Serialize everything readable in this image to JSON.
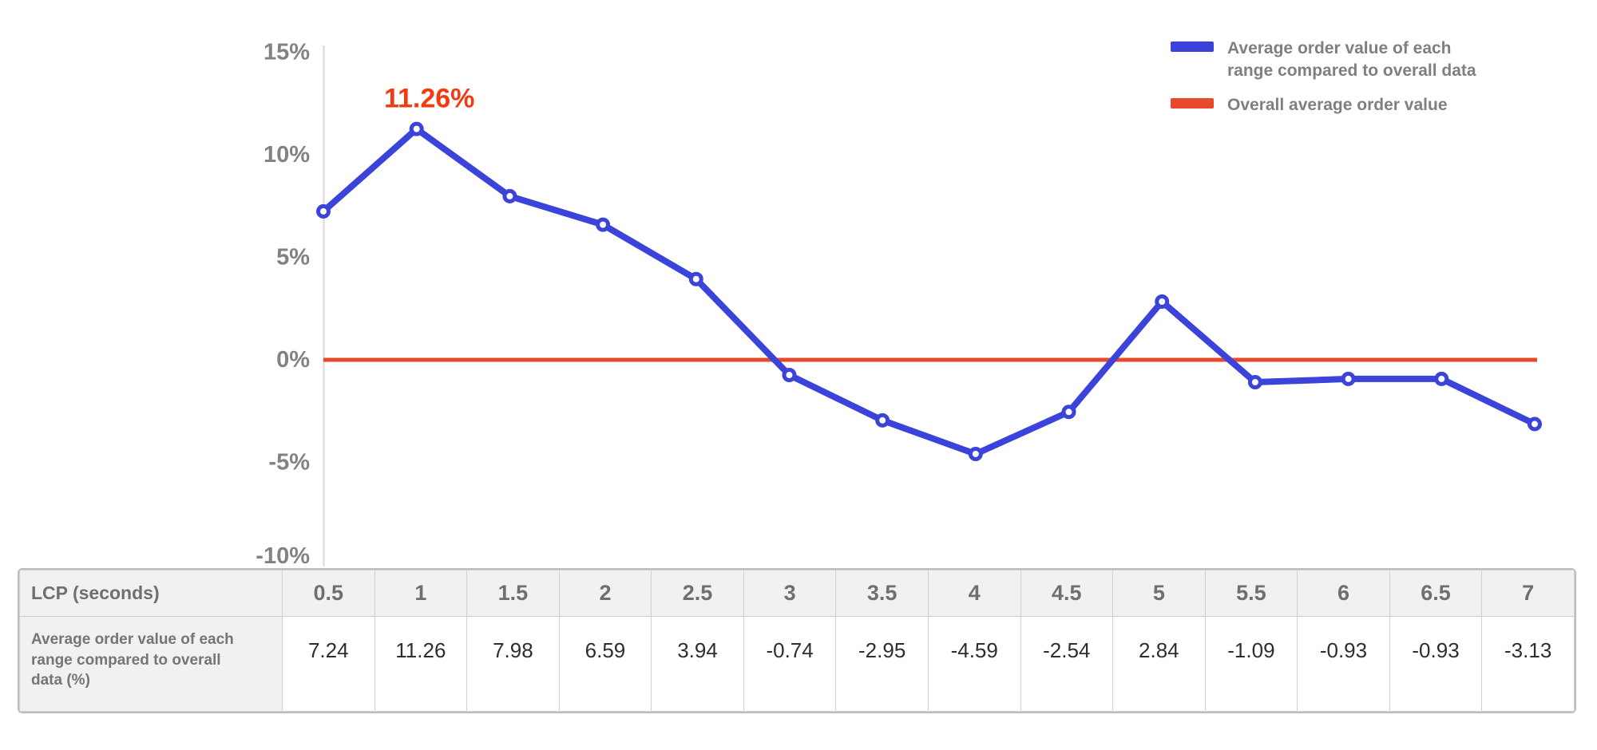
{
  "chart": {
    "y_axis": {
      "ticks": [
        {
          "label": "15%",
          "value": 15
        },
        {
          "label": "10%",
          "value": 10
        },
        {
          "label": "5%",
          "value": 5
        },
        {
          "label": "0%",
          "value": 0
        },
        {
          "label": "-5%",
          "value": -5
        },
        {
          "label": "-10%",
          "value": -10
        }
      ]
    },
    "annotation": {
      "text": "11.26%",
      "point_index": 1,
      "color": "#f23b11"
    },
    "legend": {
      "items": [
        {
          "label": "Average order value of each range compared to overall data",
          "color": "#3b43db"
        },
        {
          "label": "Overall average order value",
          "color": "#e8492d"
        }
      ]
    },
    "colors": {
      "series_line": "#3b43db",
      "reference_line": "#e8492d",
      "axis_line": "#d9d9d9",
      "tick_text": "#828282"
    }
  },
  "chart_data": {
    "type": "line",
    "x": [
      0.5,
      1,
      1.5,
      2,
      2.5,
      3,
      3.5,
      4,
      4.5,
      5,
      5.5,
      6,
      6.5,
      7
    ],
    "xlabel": "LCP (seconds)",
    "ylabel": "",
    "ylim": [
      -10,
      15
    ],
    "grid": false,
    "legend_position": "top-right",
    "series": [
      {
        "name": "Average order value of each range compared to overall data",
        "type": "line",
        "color": "#3b43db",
        "values": [
          7.24,
          11.26,
          7.98,
          6.59,
          3.94,
          -0.74,
          -2.95,
          -4.59,
          -2.54,
          2.84,
          -1.09,
          -0.93,
          -0.93,
          -3.13
        ]
      },
      {
        "name": "Overall average order value",
        "type": "horizontal-reference-line",
        "color": "#e8492d",
        "value": 0
      }
    ],
    "annotations": [
      {
        "text": "11.26%",
        "x": 1,
        "y": 11.26
      }
    ]
  },
  "table": {
    "header_label": "LCP (seconds)",
    "columns": [
      "0.5",
      "1",
      "1.5",
      "2",
      "2.5",
      "3",
      "3.5",
      "4",
      "4.5",
      "5",
      "5.5",
      "6",
      "6.5",
      "7"
    ],
    "rows": [
      {
        "label": "Average order value of each range compared to overall data (%)",
        "values": [
          "7.24",
          "11.26",
          "7.98",
          "6.59",
          "3.94",
          "-0.74",
          "-2.95",
          "-4.59",
          "-2.54",
          "2.84",
          "-1.09",
          "-0.93",
          "-0.93",
          "-3.13"
        ]
      }
    ]
  }
}
